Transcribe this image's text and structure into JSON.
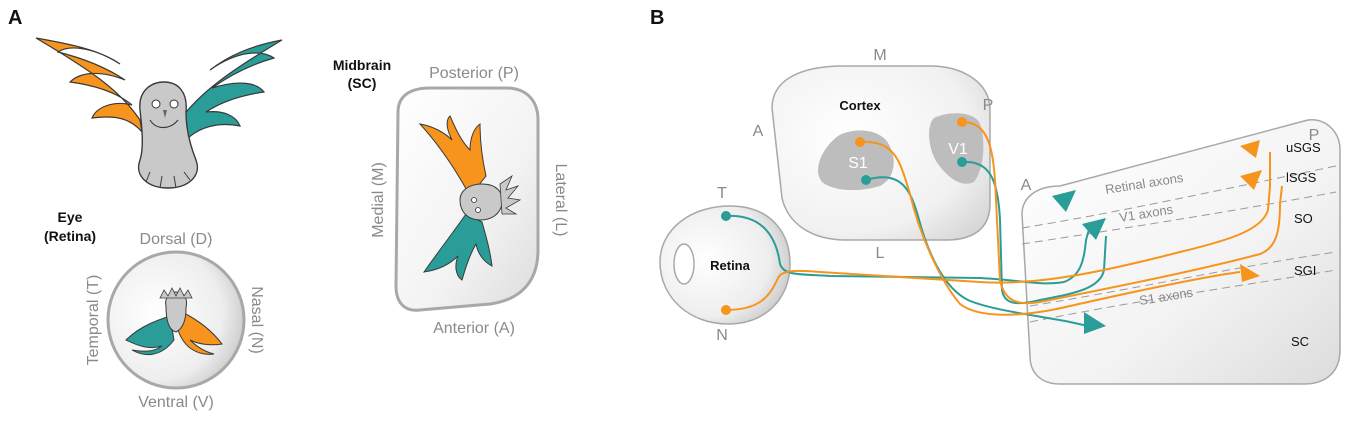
{
  "colors": {
    "orange": "#f7941d",
    "teal": "#2a9d98",
    "gray": "#c9c9c9",
    "outline": "#444444"
  },
  "panelA": {
    "letter": "A",
    "eye": {
      "title": "Eye",
      "subtitle": "(Retina)"
    },
    "retina_axes": {
      "dorsal": "Dorsal (D)",
      "ventral": "Ventral (V)",
      "temporal": "Temporal (T)",
      "nasal": "Nasal (N)"
    },
    "midbrain": {
      "title": "Midbrain",
      "subtitle": "(SC)"
    },
    "sc_axes": {
      "posterior": "Posterior (P)",
      "anterior": "Anterior (A)",
      "medial": "Medial (M)",
      "lateral": "Lateral (L)"
    }
  },
  "panelB": {
    "letter": "B",
    "retina": {
      "label": "Retina",
      "t": "T",
      "n": "N"
    },
    "cortex": {
      "label": "Cortex",
      "m": "M",
      "a": "A",
      "p": "P",
      "l": "L",
      "s1": "S1",
      "v1": "V1"
    },
    "sc": {
      "a": "A",
      "p": "P",
      "label": "SC",
      "layers": [
        "uSGS",
        "lSGS",
        "SO",
        "SGI"
      ],
      "axons": [
        "Retinal axons",
        "V1 axons",
        "S1 axons"
      ]
    }
  }
}
